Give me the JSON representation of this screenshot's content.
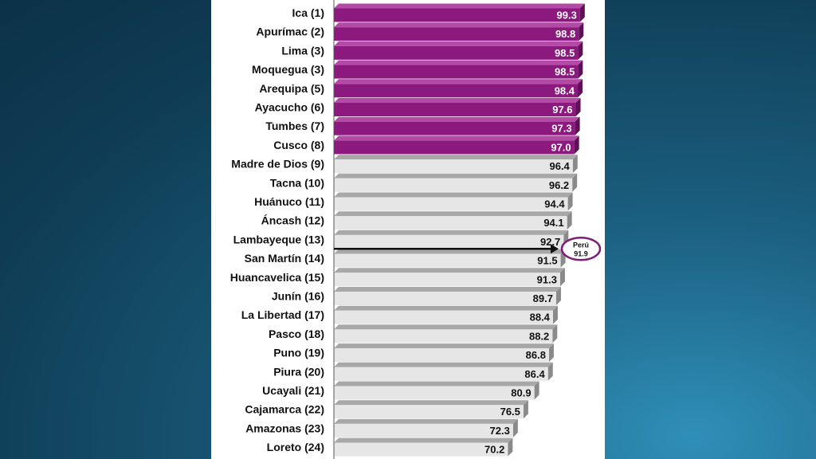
{
  "chart_data": {
    "type": "bar",
    "orientation": "horizontal",
    "categories": [
      "Ica (1)",
      "Apurímac (2)",
      "Lima (3)",
      "Moquegua (3)",
      "Arequipa (5)",
      "Ayacucho (6)",
      "Tumbes (7)",
      "Cusco (8)",
      "Madre de Dios (9)",
      "Tacna (10)",
      "Huánuco (11)",
      "Áncash (12)",
      "Lambayeque (13)",
      "San Martín (14)",
      "Huancavelica (15)",
      "Junín (16)",
      "La Libertad (17)",
      "Pasco (18)",
      "Puno (19)",
      "Piura (20)",
      "Ucayali (21)",
      "Cajamarca (22)",
      "Amazonas (23)",
      "Loreto (24)"
    ],
    "values": [
      99.3,
      98.8,
      98.5,
      98.5,
      98.4,
      97.6,
      97.3,
      97.0,
      96.4,
      96.2,
      94.4,
      94.1,
      92.7,
      91.5,
      91.3,
      89.7,
      88.4,
      88.2,
      86.8,
      86.4,
      80.9,
      76.5,
      72.3,
      70.2
    ],
    "value_labels": [
      "99.3",
      "98.8",
      "98.5",
      "98.5",
      "98.4",
      "97.6",
      "97.3",
      "97.0",
      "96.4",
      "96.2",
      "94.4",
      "94.1",
      "92.7",
      "91.5",
      "91.3",
      "89.7",
      "88.4",
      "88.2",
      "86.8",
      "86.4",
      "80.9",
      "76.5",
      "72.3",
      "70.2"
    ],
    "highlight_count": 8,
    "xlim": [
      0,
      100
    ],
    "grid": false,
    "reference_line": {
      "label": "Perú",
      "value_label": "91.9",
      "value": 91.9,
      "between": [
        12,
        13
      ]
    },
    "colors": {
      "highlight_face": "#8c1a7e",
      "highlight_top": "#b24aa6",
      "highlight_side": "#5e0f55",
      "normal_face": "#e6e6e6",
      "normal_top": "#a8a8a8",
      "normal_side": "#8a8a8a",
      "highlight_text": "#ffffff",
      "normal_text": "#111111",
      "reference_circle": "#7d1f78"
    }
  }
}
